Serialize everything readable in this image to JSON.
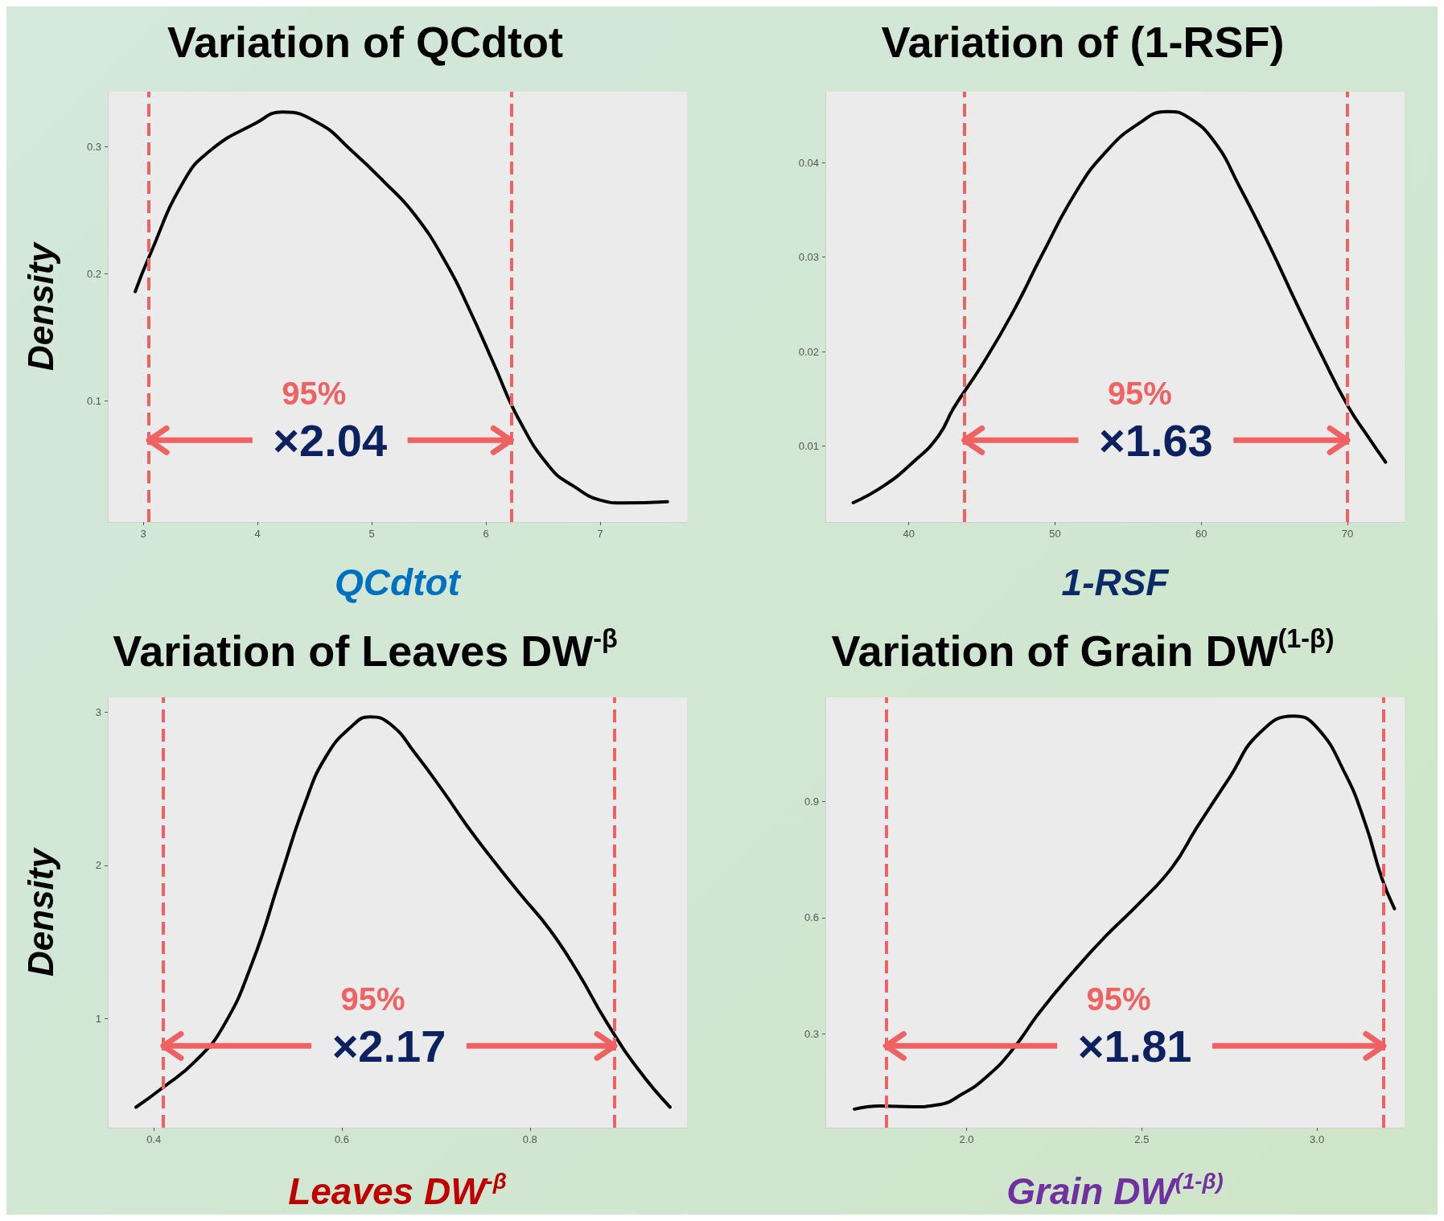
{
  "chart_data": [
    {
      "type": "line",
      "title": "Variation of QCdtot",
      "xlabel": "QCdtot",
      "ylabel": "Density",
      "xlim": [
        2.69,
        7.76
      ],
      "xticks": [
        3,
        4,
        5,
        6,
        7
      ],
      "ylim": [
        0.005,
        0.343
      ],
      "yticks": [
        0.1,
        0.2,
        0.3
      ],
      "grid": false,
      "marker": "none",
      "line_style": "solid",
      "series": [
        {
          "color": "#000000",
          "x": [
            2.93,
            3.05,
            3.35,
            3.59,
            3.98,
            4.22,
            4.54,
            4.82,
            5.1,
            5.38,
            5.66,
            5.86,
            6.07,
            6.28,
            6.56,
            6.77,
            7.01,
            7.19,
            7.59
          ],
          "values": [
            0.186,
            0.213,
            0.272,
            0.297,
            0.318,
            0.327,
            0.318,
            0.297,
            0.273,
            0.246,
            0.207,
            0.171,
            0.129,
            0.087,
            0.048,
            0.033,
            0.022,
            0.02,
            0.021
          ]
        }
      ],
      "ref_lines": [
        {
          "axis": "x",
          "value": 3.05,
          "color": "#ef6262",
          "line_style": "dashed"
        },
        {
          "axis": "x",
          "value": 6.22,
          "color": "#ef6262",
          "line_style": "dashed"
        }
      ],
      "annotations": [
        "95%",
        "×2.04"
      ]
    },
    {
      "type": "line",
      "title": "Variation of (1-RSF)",
      "xlabel": "1-RSF",
      "xlim": [
        34.3,
        73.9
      ],
      "xticks": [
        40,
        50,
        60,
        70
      ],
      "ylim": [
        0.00196,
        0.0475
      ],
      "yticks": [
        0.01,
        0.02,
        0.03,
        0.04
      ],
      "grid": false,
      "marker": "none",
      "line_style": "solid",
      "series": [
        {
          "color": "#000000",
          "x": [
            36.2,
            38.3,
            40.3,
            42.0,
            43.1,
            44.9,
            47.1,
            49.1,
            51.4,
            53.4,
            55.7,
            57.7,
            59.1,
            60.9,
            62.6,
            64.6,
            66.6,
            68.3,
            70.0,
            71.4,
            72.6
          ],
          "values": [
            0.004,
            0.0058,
            0.0083,
            0.011,
            0.0141,
            0.0183,
            0.0241,
            0.0302,
            0.0368,
            0.041,
            0.0441,
            0.0454,
            0.0448,
            0.0422,
            0.0375,
            0.0314,
            0.0248,
            0.0194,
            0.0143,
            0.011,
            0.0083
          ]
        }
      ],
      "ref_lines": [
        {
          "axis": "x",
          "value": 43.8,
          "color": "#ef6262",
          "line_style": "dashed"
        },
        {
          "axis": "x",
          "value": 70.0,
          "color": "#ef6262",
          "line_style": "dashed"
        }
      ],
      "annotations": [
        "95%",
        "×1.63"
      ]
    },
    {
      "type": "line",
      "title": "Variation of Leaves DW$^{-β}$",
      "xlabel": "Leaves DW$^{-β}$",
      "ylabel": "Density",
      "xlim": [
        0.351,
        0.967
      ],
      "xticks": [
        0.4,
        0.6,
        0.8
      ],
      "ylim": [
        0.286,
        3.097
      ],
      "yticks": [
        1,
        2,
        3
      ],
      "grid": false,
      "marker": "none",
      "line_style": "solid",
      "series": [
        {
          "color": "#000000",
          "x": [
            0.381,
            0.41,
            0.444,
            0.474,
            0.505,
            0.535,
            0.561,
            0.583,
            0.609,
            0.63,
            0.652,
            0.678,
            0.708,
            0.734,
            0.76,
            0.79,
            0.821,
            0.851,
            0.881,
            0.916,
            0.949
          ],
          "values": [
            0.42,
            0.55,
            0.72,
            0.95,
            1.37,
            1.93,
            2.41,
            2.71,
            2.9,
            2.97,
            2.92,
            2.73,
            2.48,
            2.25,
            2.04,
            1.81,
            1.58,
            1.3,
            0.98,
            0.66,
            0.42
          ]
        }
      ],
      "ref_lines": [
        {
          "axis": "x",
          "value": 0.41,
          "color": "#ef6262",
          "line_style": "dashed"
        },
        {
          "axis": "x",
          "value": 0.89,
          "color": "#ef6262",
          "line_style": "dashed"
        }
      ],
      "annotations": [
        "95%",
        "×2.17"
      ]
    },
    {
      "type": "line",
      "title": "Variation of Grain DW$^{(1-β)}$",
      "xlabel": "Grain DW$^{(1-β)}$",
      "xlim": [
        1.597,
        3.25
      ],
      "xticks": [
        {
          "value": 2,
          "label": "2.0"
        },
        {
          "value": 2.5,
          "label": "2.5"
        },
        {
          "value": 3,
          "label": "3.0"
        }
      ],
      "ylim": [
        0.058,
        1.168
      ],
      "yticks": [
        0.3,
        0.6,
        0.9
      ],
      "grid": false,
      "marker": "none",
      "line_style": "solid",
      "series": [
        {
          "color": "#000000",
          "x": [
            1.68,
            1.754,
            1.847,
            1.918,
            1.988,
            2.059,
            2.129,
            2.211,
            2.305,
            2.399,
            2.493,
            2.587,
            2.657,
            2.751,
            2.834,
            2.933,
            2.998,
            3.08,
            3.138,
            3.185,
            3.221
          ],
          "values": [
            0.106,
            0.114,
            0.112,
            0.117,
            0.145,
            0.191,
            0.257,
            0.359,
            0.461,
            0.554,
            0.637,
            0.73,
            0.832,
            0.962,
            1.074,
            1.12,
            1.092,
            0.972,
            0.842,
            0.702,
            0.623
          ]
        }
      ],
      "ref_lines": [
        {
          "axis": "x",
          "value": 1.77,
          "color": "#ef6262",
          "line_style": "dashed"
        },
        {
          "axis": "x",
          "value": 3.19,
          "color": "#ef6262",
          "line_style": "dashed"
        }
      ],
      "annotations": [
        "95%",
        "×1.81"
      ]
    }
  ]
}
